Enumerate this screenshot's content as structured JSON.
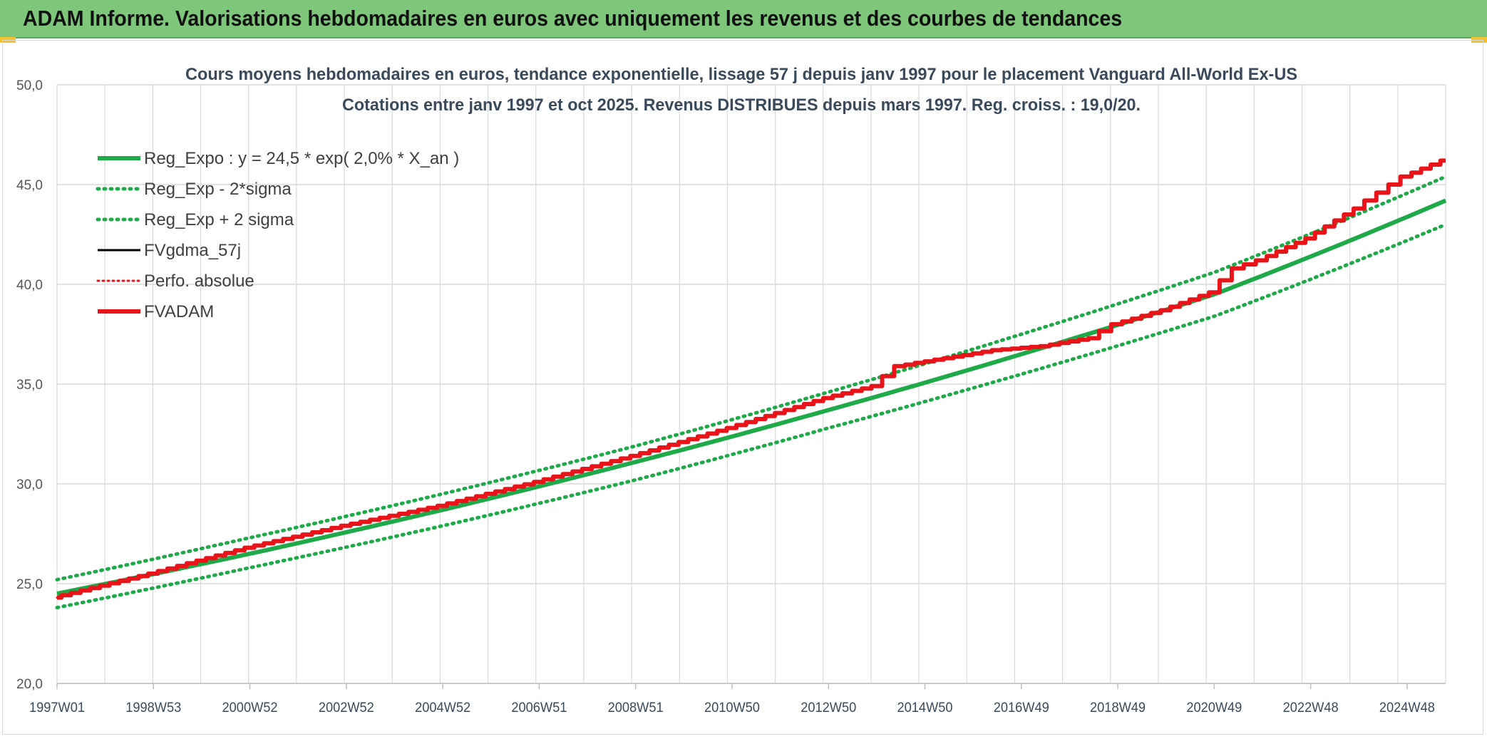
{
  "banner": {
    "title": "ADAM Informe. Valorisations hebdomadaires en euros avec uniquement les revenus et des courbes de tendances"
  },
  "colors": {
    "banner_bg": "#7dc67a",
    "green": "#1faa4a",
    "red": "#e8141a",
    "black": "#000000",
    "grid": "#d9d9d9",
    "text": "#3b4a5a"
  },
  "chart_data": {
    "type": "line",
    "title": "Cours moyens hebdomadaires en euros, tendance exponentielle, lissage 57 j depuis janv 1997 pour le placement Vanguard All-World Ex-US",
    "subtitle": "Cotations entre janv 1997 et oct 2025. Revenus DISTRIBUES depuis mars 1997. Reg. croiss. : 19,0/20.",
    "xlabel": "",
    "ylabel": "",
    "ylim": [
      20,
      50
    ],
    "xlim": [
      1997.0,
      2025.8
    ],
    "yticks": [
      "20,0",
      "25,0",
      "30,0",
      "35,0",
      "40,0",
      "45,0",
      "50,0"
    ],
    "xticks": [
      "1997W01",
      "1998W53",
      "2000W52",
      "2002W52",
      "2004W52",
      "2006W51",
      "2008W51",
      "2010W50",
      "2012W50",
      "2014W50",
      "2016W49",
      "2018W49",
      "2020W49",
      "2022W48",
      "2024W48"
    ],
    "grid": true,
    "legend_position": "top-left",
    "series": [
      {
        "name": "Reg_Expo : y = 24,5 * exp( 2,0% *  X_an )",
        "style": "solid-green",
        "x": [
          1997.0,
          2001.0,
          2005.0,
          2009.0,
          2013.0,
          2017.0,
          2021.0,
          2025.8
        ],
        "values": [
          24.5,
          26.5,
          28.7,
          31.1,
          33.7,
          36.5,
          39.5,
          44.2
        ]
      },
      {
        "name": "Reg_Exp - 2*sigma",
        "style": "dotted-green",
        "x": [
          1997.0,
          2001.0,
          2005.0,
          2009.0,
          2013.0,
          2017.0,
          2021.0,
          2025.8
        ],
        "values": [
          23.8,
          25.8,
          27.9,
          30.2,
          32.8,
          35.5,
          38.4,
          43.0
        ]
      },
      {
        "name": "Reg_Exp + 2 sigma",
        "style": "dotted-green",
        "x": [
          1997.0,
          2001.0,
          2005.0,
          2009.0,
          2013.0,
          2017.0,
          2021.0,
          2025.8
        ],
        "values": [
          25.2,
          27.3,
          29.5,
          31.9,
          34.6,
          37.5,
          40.6,
          45.4
        ]
      },
      {
        "name": "FVgdma_57j",
        "style": "solid-black",
        "x": [
          1997.0,
          1999.0,
          2001.0,
          2003.0,
          2005.0,
          2007.0,
          2009.0,
          2011.0,
          2013.0,
          2014.0,
          2014.5,
          2015.5,
          2016.5,
          2017.5,
          2018.5,
          2019.0,
          2020.0,
          2021.0,
          2021.5,
          2022.0,
          2023.0,
          2024.0,
          2024.5,
          2025.0,
          2025.8
        ],
        "values": [
          24.3,
          25.5,
          26.8,
          27.9,
          28.9,
          30.1,
          31.4,
          32.8,
          34.3,
          34.9,
          35.9,
          36.3,
          36.7,
          36.9,
          37.3,
          38.0,
          38.7,
          39.6,
          40.8,
          41.2,
          42.3,
          43.8,
          44.6,
          45.4,
          46.2
        ]
      },
      {
        "name": "Perfo. absolue",
        "style": "dotted-red",
        "x": [
          1997.0,
          1999.0,
          2001.0,
          2003.0,
          2005.0,
          2007.0,
          2009.0,
          2011.0,
          2013.0,
          2014.0,
          2014.5,
          2015.5,
          2016.5,
          2017.5,
          2018.5,
          2019.0,
          2020.0,
          2021.0,
          2021.5,
          2022.0,
          2023.0,
          2024.0,
          2024.5,
          2025.0,
          2025.8
        ],
        "values": [
          24.3,
          25.5,
          26.8,
          27.9,
          28.9,
          30.1,
          31.4,
          32.8,
          34.3,
          34.9,
          35.9,
          36.3,
          36.7,
          36.9,
          37.3,
          38.0,
          38.7,
          39.6,
          40.8,
          41.2,
          42.3,
          43.8,
          44.6,
          45.4,
          46.2
        ]
      },
      {
        "name": "FVADAM",
        "style": "solid-red",
        "x": [
          1997.0,
          1999.0,
          2001.0,
          2003.0,
          2005.0,
          2007.0,
          2009.0,
          2011.0,
          2013.0,
          2014.0,
          2014.5,
          2015.5,
          2016.5,
          2017.5,
          2018.5,
          2019.0,
          2020.0,
          2021.0,
          2021.5,
          2022.0,
          2023.0,
          2024.0,
          2024.5,
          2025.0,
          2025.8
        ],
        "values": [
          24.3,
          25.5,
          26.8,
          27.9,
          28.9,
          30.1,
          31.4,
          32.8,
          34.3,
          34.9,
          35.9,
          36.3,
          36.7,
          36.9,
          37.3,
          38.0,
          38.7,
          39.6,
          40.8,
          41.2,
          42.3,
          43.8,
          44.6,
          45.4,
          46.2
        ]
      }
    ]
  }
}
